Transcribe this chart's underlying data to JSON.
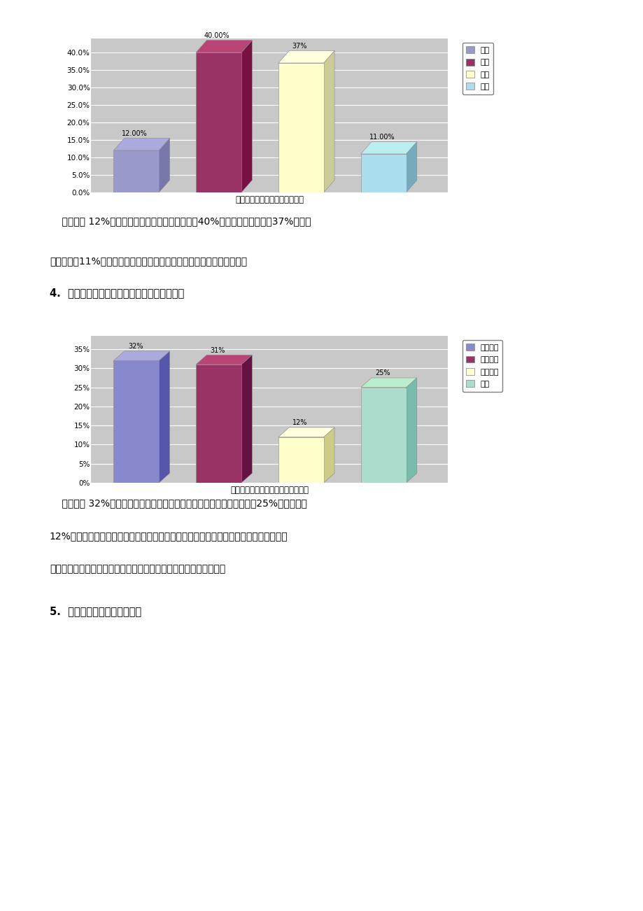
{
  "chart1": {
    "categories": [
      "很多",
      "一般",
      "很少",
      "没有"
    ],
    "values": [
      12,
      40,
      37,
      11
    ],
    "labels": [
      "12.00%",
      "40.00%",
      "37%",
      "11.00%"
    ],
    "colors": [
      "#9999cc",
      "#993366",
      "#ffffcc",
      "#aaddee"
    ],
    "side_colors": [
      "#7777aa",
      "#771144",
      "#cccc99",
      "#77aabb"
    ],
    "top_colors": [
      "#aaaadd",
      "#bb4477",
      "#ffffdd",
      "#bbeeee"
    ],
    "xlabel": "身边的亲朋好友使用苹果产品吗",
    "ylim": [
      0,
      42
    ],
    "yticks": [
      0,
      5,
      10,
      15,
      20,
      25,
      30,
      35,
      40
    ],
    "ytick_labels": [
      "0.0%",
      "5.0%",
      "10.0%",
      "15.0%",
      "20.0%",
      "25.0%",
      "30.0%",
      "35.0%",
      "40.0%"
    ],
    "legend_labels": [
      "很多",
      "一般",
      "很少",
      "没有"
    ]
  },
  "chart2": {
    "categories": [
      "攀比心理",
      "从众心理",
      "实用心理",
      "其他"
    ],
    "values": [
      32,
      31,
      12,
      25
    ],
    "labels": [
      "32%",
      "31%",
      "12%",
      "25%"
    ],
    "colors": [
      "#8888cc",
      "#993366",
      "#ffffcc",
      "#aaddcc"
    ],
    "side_colors": [
      "#5555aa",
      "#661144",
      "#cccc88",
      "#77bbaa"
    ],
    "top_colors": [
      "#aaaadd",
      "#bb4477",
      "#ffffdd",
      "#bbeecc"
    ],
    "xlabel": "大学生购买苹果产品出于怎样的心理",
    "ylim": [
      0,
      37
    ],
    "yticks": [
      0,
      5,
      10,
      15,
      20,
      25,
      30,
      35
    ],
    "ytick_labels": [
      "0%",
      "5%",
      "10%",
      "15%",
      "20%",
      "25%",
      "30%",
      "35%"
    ],
    "legend_labels": [
      "攀比心理",
      "从众心理",
      "实用心理",
      "其他"
    ]
  },
  "text1_line1": "    分析：有 12%的大学生身边使用苹果的有诸多，40%的大学生身边一般，37%大学生",
  "text1_line2": "身边很少，11%大学生身边没有。阐明苹果产品已经在大学生身边蔭延。",
  "heading2": "4.  您觉得大学生购买苹果产品出于如何的心理",
  "text2_line1": "    分析：有 32%的大学生觉得购买苹果产品是出于攀比心理和从众心理，25%选择其她，",
  "text2_line2": "12%选择实用，目前诸多大学生觉得购买苹果手机就能显示自己地位身价等，尚有诸多大",
  "text2_line3": "学生看到别人购买后自己也喜欢跟风，然而真正觉得实用的却很少。",
  "heading3": "5.  您对苹果产品的印象是什么",
  "bg_color": "#ffffff",
  "wall_color": "#c8c8c8",
  "grid_color": "#ffffff"
}
